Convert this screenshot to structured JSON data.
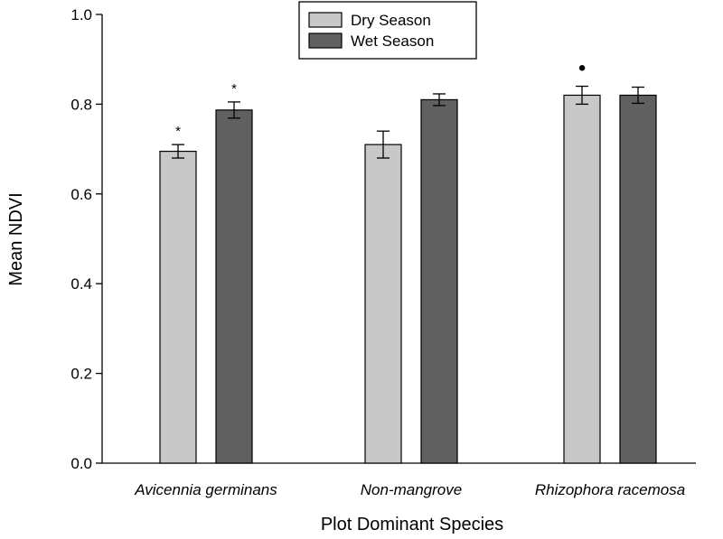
{
  "chart_data": {
    "type": "bar",
    "xlabel": "Plot Dominant Species",
    "ylabel": "Mean NDVI",
    "ylim": [
      0,
      1.0
    ],
    "yticks": [
      "0.0",
      "0.2",
      "0.4",
      "0.6",
      "0.8",
      "1.0"
    ],
    "categories": [
      "Avicennia germinans",
      "Non-mangrove",
      "Rhizophora racemosa"
    ],
    "series": [
      {
        "name": "Dry Season",
        "color": "#c8c8c8",
        "values": [
          0.695,
          0.71,
          0.82
        ],
        "errors": [
          0.015,
          0.03,
          0.02
        ]
      },
      {
        "name": "Wet Season",
        "color": "#606060",
        "values": [
          0.787,
          0.81,
          0.82
        ],
        "errors": [
          0.018,
          0.013,
          0.018
        ]
      }
    ],
    "annotations": [
      {
        "category": "Avicennia germinans",
        "series": "Dry Season",
        "text": "*"
      },
      {
        "category": "Avicennia germinans",
        "series": "Wet Season",
        "text": "*"
      },
      {
        "category": "Rhizophora racemosa",
        "series": "Dry Season",
        "text": "●"
      }
    ],
    "legend": {
      "placement": "top-center",
      "labels": [
        "Dry Season",
        "Wet Season"
      ]
    },
    "grid": false
  }
}
